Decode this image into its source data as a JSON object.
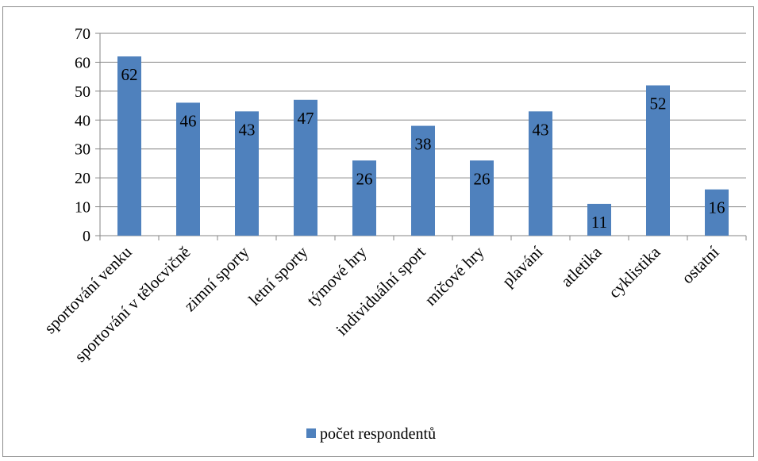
{
  "chart_data": {
    "type": "bar",
    "categories": [
      "sportování venku",
      "sportování v tělocvičně",
      "zimní sporty",
      "letní sporty",
      "týmové hry",
      "individuální sport",
      "míčové hry",
      "plavání",
      "atletika",
      "cyklistika",
      "ostatní"
    ],
    "series": [
      {
        "name": "počet respondentů",
        "values": [
          62,
          46,
          43,
          47,
          26,
          38,
          26,
          43,
          11,
          52,
          16
        ],
        "color": "#4f81bd"
      }
    ],
    "ylim": [
      0,
      70
    ],
    "yticks": [
      "0",
      "10",
      "20",
      "30",
      "40",
      "50",
      "60",
      "70"
    ],
    "grid": true,
    "legend_position": "bottom"
  }
}
